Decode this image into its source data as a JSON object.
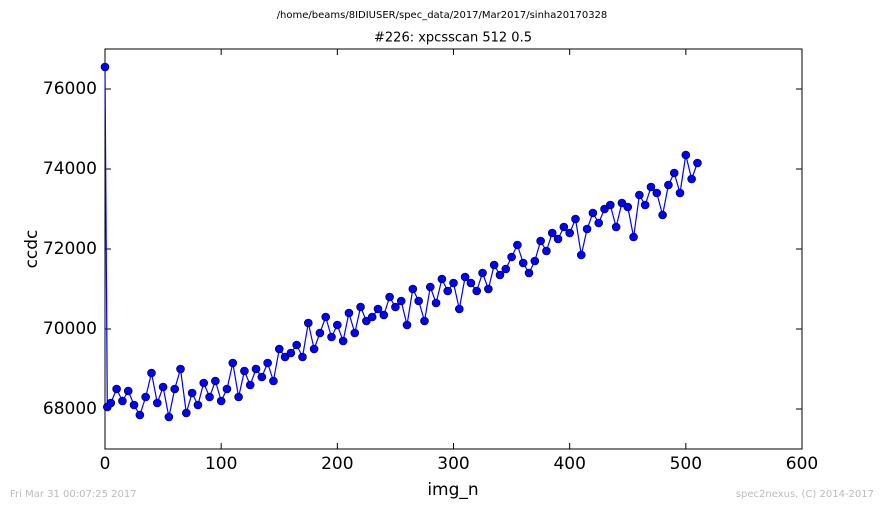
{
  "page": {
    "path_title": "/home/beams/8IDIUSER/spec_data/2017/Mar2017/sinha20170328",
    "timestamp": "Fri Mar 31 00:07:25 2017",
    "credit": "spec2nexus, (C) 2014-2017"
  },
  "chart_data": {
    "type": "line",
    "title": "#226: xpcsscan 512 0.5",
    "xlabel": "img_n",
    "ylabel": "ccdc",
    "color": "#0000ff",
    "marker": true,
    "x": [
      0,
      2,
      5,
      10,
      15,
      20,
      25,
      30,
      35,
      40,
      45,
      50,
      55,
      60,
      65,
      70,
      75,
      80,
      85,
      90,
      95,
      100,
      105,
      110,
      115,
      120,
      125,
      130,
      135,
      140,
      145,
      150,
      155,
      160,
      165,
      170,
      175,
      180,
      185,
      190,
      195,
      200,
      205,
      210,
      215,
      220,
      225,
      230,
      235,
      240,
      245,
      250,
      255,
      260,
      265,
      270,
      275,
      280,
      285,
      290,
      295,
      300,
      305,
      310,
      315,
      320,
      325,
      330,
      335,
      340,
      345,
      350,
      355,
      360,
      365,
      370,
      375,
      380,
      385,
      390,
      395,
      400,
      405,
      410,
      415,
      420,
      425,
      430,
      435,
      440,
      445,
      450,
      455,
      460,
      465,
      470,
      475,
      480,
      485,
      490,
      495,
      500,
      505,
      510
    ],
    "values": [
      76550,
      68050,
      68150,
      68500,
      68200,
      68450,
      68100,
      67850,
      68300,
      68900,
      68150,
      68550,
      67800,
      68500,
      69000,
      67900,
      68400,
      68100,
      68650,
      68300,
      68700,
      68200,
      68500,
      69150,
      68300,
      68950,
      68600,
      69000,
      68800,
      69150,
      68700,
      69500,
      69300,
      69400,
      69600,
      69300,
      70150,
      69500,
      69900,
      70300,
      69800,
      70100,
      69700,
      70400,
      69900,
      70550,
      70200,
      70300,
      70500,
      70350,
      70800,
      70550,
      70700,
      70100,
      71000,
      70700,
      70200,
      71050,
      70650,
      71250,
      70950,
      71150,
      70500,
      71300,
      71150,
      70950,
      71400,
      71000,
      71600,
      71350,
      71500,
      71800,
      72100,
      71650,
      71400,
      71700,
      72200,
      71950,
      72400,
      72250,
      72550,
      72400,
      72750,
      71850,
      72500,
      72900,
      72650,
      73000,
      73100,
      72550,
      73150,
      73050,
      72300,
      73350,
      73100,
      73550,
      73400,
      72850,
      73600,
      73900,
      73400,
      74350,
      73750,
      74150
    ],
    "xlim": [
      0,
      600
    ],
    "xticks": [
      0,
      100,
      200,
      300,
      400,
      500,
      600
    ],
    "ylim": [
      67000,
      77000
    ],
    "yticks": [
      68000,
      70000,
      72000,
      74000,
      76000
    ]
  }
}
